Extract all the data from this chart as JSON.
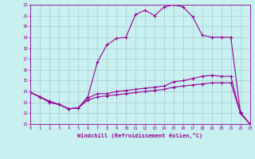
{
  "xlabel": "Windchill (Refroidissement éolien,°C)",
  "bg_color": "#c8f0f0",
  "line_color": "#990099",
  "grid_color": "#aacccc",
  "xmin": 0,
  "xmax": 23,
  "ymin": 11,
  "ymax": 22,
  "line1_x": [
    0,
    1,
    2,
    3,
    4,
    5,
    6,
    7,
    8,
    9,
    10,
    11,
    12,
    13,
    14,
    15,
    16,
    17,
    18,
    19,
    20,
    21,
    22,
    23
  ],
  "line1_y": [
    13.9,
    13.5,
    13.1,
    12.8,
    12.4,
    12.5,
    13.5,
    16.7,
    18.3,
    18.9,
    19.0,
    21.1,
    21.5,
    21.0,
    21.8,
    22.0,
    21.8,
    20.9,
    19.2,
    19.0,
    19.0,
    19.0,
    12.1,
    11.0
  ],
  "line2_x": [
    0,
    1,
    2,
    3,
    4,
    5,
    6,
    7,
    8,
    9,
    10,
    11,
    12,
    13,
    14,
    15,
    16,
    17,
    18,
    19,
    20,
    21,
    22,
    23
  ],
  "line2_y": [
    13.9,
    13.5,
    13.0,
    12.8,
    12.4,
    12.5,
    13.4,
    13.8,
    13.8,
    14.0,
    14.1,
    14.2,
    14.3,
    14.4,
    14.5,
    14.9,
    15.0,
    15.2,
    15.4,
    15.5,
    15.4,
    15.4,
    12.0,
    11.0
  ],
  "line3_x": [
    0,
    1,
    2,
    3,
    4,
    5,
    6,
    7,
    8,
    9,
    10,
    11,
    12,
    13,
    14,
    15,
    16,
    17,
    18,
    19,
    20,
    21,
    22,
    23
  ],
  "line3_y": [
    13.9,
    13.5,
    13.0,
    12.8,
    12.4,
    12.5,
    13.2,
    13.5,
    13.6,
    13.7,
    13.8,
    13.9,
    14.0,
    14.1,
    14.2,
    14.4,
    14.5,
    14.6,
    14.7,
    14.8,
    14.8,
    14.8,
    12.0,
    11.0
  ]
}
